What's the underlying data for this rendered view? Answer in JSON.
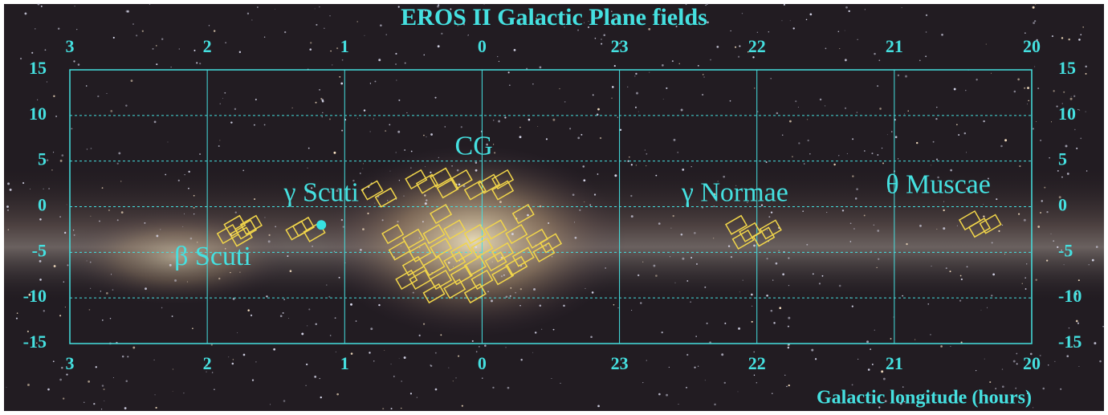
{
  "chart_data": {
    "type": "scatter",
    "title": "EROS II Galactic Plane fields",
    "x_label": "Galactic longitude (hours)",
    "xlim": [
      3,
      -4
    ],
    "ylim": [
      -15,
      15
    ],
    "xticks": [
      3,
      2,
      1,
      0,
      {
        "value": -1,
        "label": "23"
      },
      {
        "value": -2,
        "label": "22"
      },
      {
        "value": -3,
        "label": "21"
      },
      {
        "value": -4,
        "label": "20"
      }
    ],
    "yticks": [
      -15,
      -10,
      -5,
      0,
      5,
      10,
      15
    ],
    "grid": true,
    "series": [
      {
        "color": "#f2d64a",
        "marker": "field",
        "x": [
          1.8,
          1.72,
          1.85,
          1.75,
          1.68,
          1.3,
          1.22,
          1.35,
          0.48,
          0.4,
          0.3,
          0.25,
          0.15,
          0.05,
          -0.05,
          -0.15,
          -0.15,
          0.8,
          0.7,
          0.3,
          -0.3,
          0.65,
          0.5,
          0.35,
          0.2,
          0.05,
          -0.1,
          -0.25,
          -0.4,
          -0.5,
          0.6,
          0.45,
          0.3,
          0.15,
          0.0,
          -0.15,
          -0.3,
          -0.45,
          0.5,
          0.35,
          0.2,
          0.05,
          -0.1,
          -0.25,
          0.45,
          0.3,
          0.15,
          0.0,
          -0.15,
          0.35,
          0.2,
          0.05,
          0.55,
          -1.85,
          -1.95,
          -2.05,
          -1.9,
          -2.1,
          -3.55,
          -3.62,
          -3.7
        ],
        "values": [
          -2,
          -2.5,
          -3,
          -3.3,
          -2,
          -2.2,
          -2.8,
          -2.6,
          3,
          2.5,
          3.2,
          2,
          3,
          1.8,
          2.5,
          3,
          1.8,
          1.8,
          1,
          -0.8,
          -0.8,
          -3,
          -3.5,
          -3,
          -2.5,
          -3,
          -2.5,
          -3,
          -3.5,
          -4,
          -4.8,
          -5,
          -4.5,
          -5,
          -4.5,
          -5,
          -5.5,
          -5,
          -6.5,
          -6.5,
          -6,
          -6.5,
          -6,
          -6.5,
          -8,
          -8,
          -7.5,
          -8,
          -7.5,
          -9.5,
          -9,
          -9.5,
          -8,
          -2,
          -2.8,
          -3.3,
          -3.6,
          -2.5,
          -1.5,
          -2.3,
          -1.9
        ]
      },
      {
        "color": "#37e3e3",
        "marker": "dot",
        "x": [
          1.17
        ],
        "values": [
          -2.0
        ]
      }
    ],
    "annotations": [
      {
        "text": "CG",
        "x": 0.06,
        "y": 6.4
      },
      {
        "text": "γ Scuti",
        "x": 1.17,
        "y": 1.3
      },
      {
        "text": "β Scuti",
        "x": 1.96,
        "y": -5.7
      },
      {
        "text": "γ Normae",
        "x": -1.84,
        "y": 1.3
      },
      {
        "text": "θ Muscae",
        "x": -3.32,
        "y": 2.2
      }
    ]
  }
}
